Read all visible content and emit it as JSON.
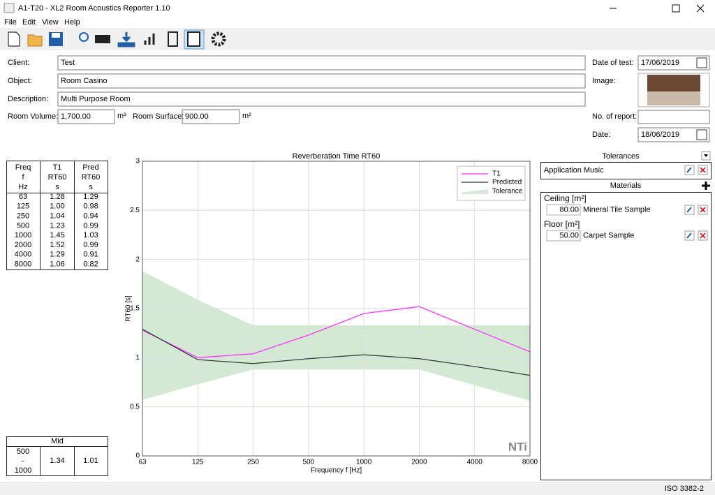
{
  "window": {
    "title": "A1-T20 - XL2 Room Acoustics Reporter 1.10"
  },
  "menu": [
    "File",
    "Edit",
    "View",
    "Help"
  ],
  "form": {
    "client": {
      "label": "Client:",
      "value": "Test"
    },
    "object": {
      "label": "Object:",
      "value": "Room Casino"
    },
    "description": {
      "label": "Description:",
      "value": "Multi Purpose Room"
    },
    "room_volume": {
      "label": "Room Volume:",
      "value": "1,700.00",
      "unit": "m³"
    },
    "room_surface": {
      "label": "Room Surface:",
      "value": "900.00",
      "unit": "m²"
    },
    "date_of_test": {
      "label": "Date of test:",
      "value": "17/06/2019"
    },
    "image": {
      "label": "Image:"
    },
    "report_no": {
      "label": "No. of report:"
    },
    "date": {
      "label": "Date:",
      "value": "18/06/2019"
    }
  },
  "table": {
    "header": [
      [
        "Freq",
        "f",
        "Hz"
      ],
      [
        "T1",
        "RT60",
        "s"
      ],
      [
        "Pred",
        "RT60",
        "s"
      ]
    ],
    "rows": [
      [
        "63",
        "1.28",
        "1.29"
      ],
      [
        "125",
        "1.00",
        "0.98"
      ],
      [
        "250",
        "1.04",
        "0.94"
      ],
      [
        "500",
        "1.23",
        "0.99"
      ],
      [
        "1000",
        "1.45",
        "1.03"
      ],
      [
        "2000",
        "1.52",
        "0.99"
      ],
      [
        "4000",
        "1.29",
        "0.91"
      ],
      [
        "8000",
        "1.06",
        "0.82"
      ]
    ]
  },
  "mid_table": {
    "title": "Mid",
    "band": [
      "500",
      "-",
      "1000"
    ],
    "values": [
      "1.34",
      "1.01"
    ]
  },
  "chart_data": {
    "type": "line",
    "title": "Reverberation Time RT60",
    "x_label": "Frequency f [Hz]",
    "y_label": "RT60 [s]",
    "categories": [
      "63",
      "125",
      "250",
      "500",
      "1000",
      "2000",
      "4000",
      "8000"
    ],
    "series": [
      {
        "name": "T1",
        "color": "#ff33ff",
        "values": [
          1.28,
          1.0,
          1.04,
          1.23,
          1.45,
          1.52,
          1.29,
          1.06
        ]
      },
      {
        "name": "Predicted",
        "color": "#2f3f35",
        "values": [
          1.29,
          0.98,
          0.94,
          0.99,
          1.03,
          0.99,
          0.91,
          0.82
        ]
      }
    ],
    "tolerance": {
      "name": "Tolerance",
      "color": "#d3e9d3",
      "upper": [
        1.88,
        1.59,
        1.33,
        1.33,
        1.33,
        1.33,
        1.33,
        1.33
      ],
      "lower": [
        0.57,
        0.73,
        0.88,
        0.88,
        0.88,
        0.88,
        0.72,
        0.56
      ]
    },
    "ylim": [
      0,
      3
    ],
    "yticks": [
      0,
      0.5,
      1,
      1.5,
      2,
      2.5,
      3
    ],
    "grid": true,
    "legend": "top-right",
    "logo": "NTi"
  },
  "tolerances": {
    "title": "Tolerances",
    "items": [
      "Application Music"
    ]
  },
  "materials": {
    "title": "Materials",
    "groups": [
      {
        "name": "Ceiling [m²]",
        "area": "80.00",
        "material": "Mineral Tile Sample"
      },
      {
        "name": "Floor [m²]",
        "area": "50.00",
        "material": "Carpet Sample"
      }
    ]
  },
  "status": "ISO 3382-2"
}
